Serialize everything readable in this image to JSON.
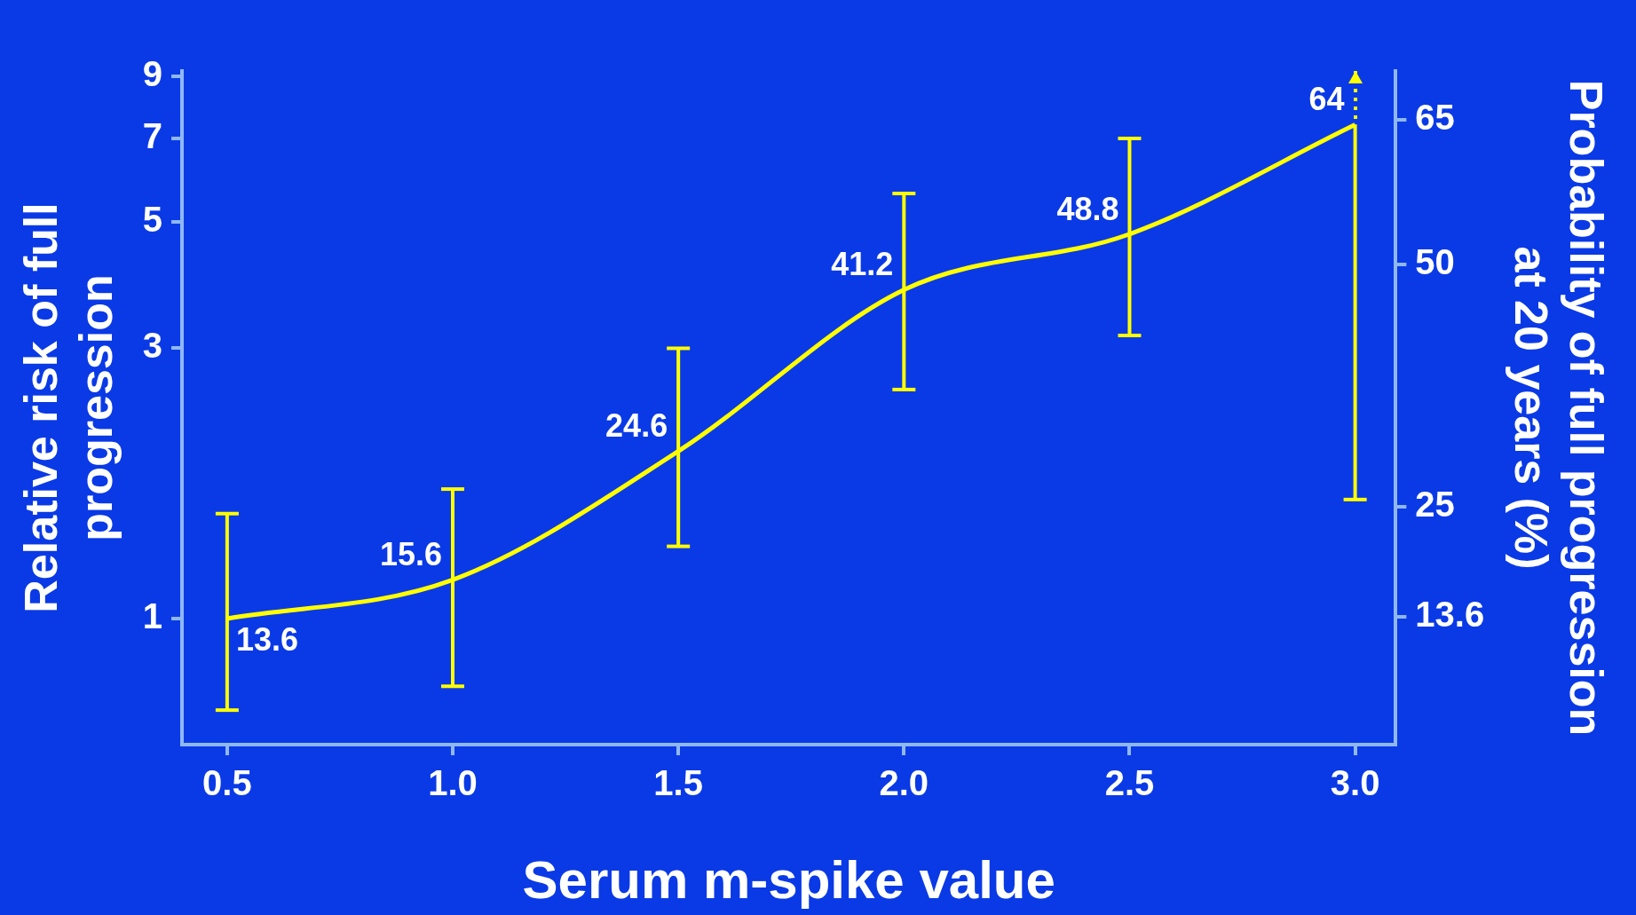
{
  "chart_data": {
    "type": "line",
    "xlabel": "Serum m-spike value",
    "ylabel": "Relative risk of full progression",
    "y2label": "Probability of full progression at 20 years (%)",
    "x": [
      0.5,
      1.0,
      1.5,
      2.0,
      2.5,
      3.0
    ],
    "series": [
      {
        "color": "#ffff00",
        "values": [
          1.0,
          1.17,
          1.97,
          3.79,
          4.75,
          7.4
        ],
        "errors": [
          [
            0.69,
            1.53
          ],
          [
            0.76,
            1.69
          ],
          [
            1.34,
            2.99
          ],
          [
            2.53,
            5.6
          ],
          [
            3.15,
            7.0
          ],
          [
            1.62,
            9.2
          ]
        ]
      }
    ],
    "annotations": [
      {
        "text": "13.6",
        "x": 0.5,
        "y": 1.0
      },
      {
        "text": "15.6",
        "x": 1.0,
        "y": 1.17
      },
      {
        "text": "24.6",
        "x": 1.5,
        "y": 1.97
      },
      {
        "text": "41.2",
        "x": 2.0,
        "y": 3.79
      },
      {
        "text": "48.8",
        "x": 2.5,
        "y": 4.75
      },
      {
        "text": "64",
        "x": 3.0,
        "y": 7.4
      }
    ],
    "log": "y",
    "xlim": [
      0.4,
      3.09
    ],
    "xticks": [
      {
        "value": 0.5,
        "label": "0.5"
      },
      {
        "value": 1.0,
        "label": "1.0"
      },
      {
        "value": 1.5,
        "label": "1.5"
      },
      {
        "value": 2.0,
        "label": "2.0"
      },
      {
        "value": 2.5,
        "label": "2.5"
      },
      {
        "value": 3.0,
        "label": "3.0"
      }
    ],
    "ylim": [
      0.6,
      9.2
    ],
    "yticks": [
      1,
      3,
      5,
      7,
      9
    ],
    "y2lim": [
      0.4,
      70
    ],
    "y2ticks": [
      13.6,
      25,
      50,
      65
    ],
    "marker": "none",
    "line_style": "solid",
    "grid": false,
    "legend": false
  }
}
